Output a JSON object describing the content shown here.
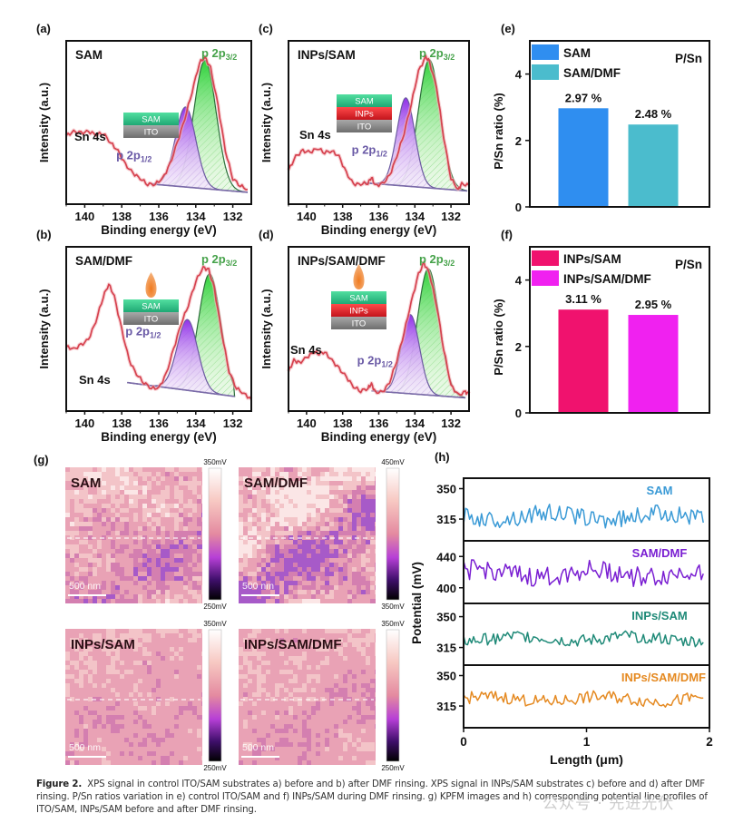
{
  "figure": {
    "caption_label": "Figure 2.",
    "caption_text": "XPS signal in control ITO/SAM substrates a) before and b) after DMF rinsing. XPS signal in INPs/SAM substrates c) before and d) after DMF rinsing. P/Sn ratios variation in e) control ITO/SAM and f) INPs/SAM during DMF rinsing. g) KPFM images and h) corresponding potential line profiles of ITO/SAM, INPs/SAM before and after DMF rinsing.",
    "watermark": "公众号 · 先进光伏"
  },
  "colors": {
    "raw_curve": "#d6424f",
    "p32_fill": "#3ecf47",
    "p12_fill": "#9a4ae0",
    "baseline": "#7a6aa8",
    "bar_sam": "#2f8ef0",
    "bar_sam_dmf": "#4bbccd",
    "bar_inps_sam": "#f0126e",
    "bar_inps_sam_dmf": "#f021f0",
    "line_sam": "#3a9ad6",
    "line_sam_dmf": "#7a1fd2",
    "line_inps_sam": "#1f8a78",
    "line_inps_sam_dmf": "#e58a22",
    "layer_sam": "#2fc38a",
    "layer_inps": "#e0242c",
    "layer_ito": "#8c8c8c",
    "droplet": "#ea6a1e"
  },
  "chart_data": [
    {
      "id": "a",
      "panel_label": "(a)",
      "type": "line",
      "title": "SAM",
      "xlabel": "Binding energy (eV)",
      "ylabel": "Intensity (a.u.)",
      "xlim": [
        141,
        131
      ],
      "xticks": [
        140,
        138,
        136,
        134,
        132
      ],
      "ylim": [
        0,
        1
      ],
      "annotations": {
        "sn4s": "Sn 4s",
        "p12": "p 2p",
        "p12_sub": "1/2",
        "p32": "p 2p",
        "p32_sub": "3/2"
      },
      "stack_layers": [
        "SAM",
        "ITO"
      ],
      "droplet": false,
      "raw": {
        "x": [
          141,
          140.6,
          140.2,
          139.8,
          139.4,
          139.0,
          138.6,
          138.2,
          137.8,
          137.4,
          137.0,
          136.6,
          136.2,
          135.8,
          135.4,
          135.0,
          134.6,
          134.2,
          133.8,
          133.5,
          133.2,
          132.8,
          132.4,
          132.0,
          131.6,
          131.2
        ],
        "y": [
          0.43,
          0.46,
          0.45,
          0.46,
          0.44,
          0.45,
          0.38,
          0.32,
          0.22,
          0.16,
          0.12,
          0.08,
          0.08,
          0.12,
          0.22,
          0.38,
          0.55,
          0.75,
          0.96,
          1.0,
          0.92,
          0.65,
          0.32,
          0.12,
          0.07,
          0.04
        ]
      },
      "baseline": [
        [
          136.4,
          0.08
        ],
        [
          131.2,
          0.02
        ]
      ],
      "peak_p12": {
        "center": 134.55,
        "height": 0.58,
        "width": 0.55
      },
      "peak_p32": {
        "center": 133.5,
        "height": 0.93,
        "width": 0.6
      }
    },
    {
      "id": "b",
      "panel_label": "(b)",
      "type": "line",
      "title": "SAM/DMF",
      "xlabel": "Binding energy (eV)",
      "ylabel": "Intensity (a.u.)",
      "xlim": [
        141,
        131
      ],
      "xticks": [
        140,
        138,
        136,
        134,
        132
      ],
      "ylim": [
        0,
        1
      ],
      "annotations": {
        "sn4s": "Sn 4s",
        "p12": "p 2p",
        "p12_sub": "1/2",
        "p32": "p 2p",
        "p32_sub": "3/2"
      },
      "stack_layers": [
        "SAM",
        "ITO"
      ],
      "droplet": true,
      "raw": {
        "x": [
          141,
          140.6,
          140.2,
          139.8,
          139.4,
          139.0,
          138.7,
          138.4,
          138.0,
          137.6,
          137.2,
          136.8,
          136.4,
          136.0,
          135.6,
          135.2,
          134.8,
          134.4,
          134.0,
          133.6,
          133.3,
          133.0,
          132.6,
          132.2,
          131.8,
          131.4,
          131.0
        ],
        "y": [
          0.4,
          0.38,
          0.41,
          0.45,
          0.58,
          0.76,
          0.85,
          0.76,
          0.52,
          0.3,
          0.2,
          0.14,
          0.1,
          0.1,
          0.2,
          0.38,
          0.56,
          0.7,
          0.87,
          0.97,
          0.95,
          0.82,
          0.5,
          0.22,
          0.1,
          0.06,
          0.02
        ]
      },
      "baseline": [
        [
          137.7,
          0.14
        ],
        [
          131.9,
          0.04
        ]
      ],
      "peak_p12": {
        "center": 134.45,
        "height": 0.51,
        "width": 0.55
      },
      "peak_p32": {
        "center": 133.25,
        "height": 0.86,
        "width": 0.6
      }
    },
    {
      "id": "c",
      "panel_label": "(c)",
      "type": "line",
      "title": "INPs/SAM",
      "xlabel": "Binding energy (eV)",
      "ylabel": "Intensity (a.u.)",
      "xlim": [
        141,
        131
      ],
      "xticks": [
        140,
        138,
        136,
        134,
        132
      ],
      "ylim": [
        0,
        1
      ],
      "annotations": {
        "sn4s": "Sn 4s",
        "p12": "p 2p",
        "p12_sub": "1/2",
        "p32": "p 2p",
        "p32_sub": "3/2"
      },
      "stack_layers": [
        "SAM",
        "INPs",
        "ITO"
      ],
      "droplet": false,
      "raw": {
        "x": [
          141,
          140.6,
          140.2,
          139.8,
          139.4,
          139.0,
          138.6,
          138.2,
          137.8,
          137.4,
          137.0,
          136.6,
          136.4,
          136.2,
          135.8,
          135.4,
          135.0,
          134.6,
          134.2,
          133.8,
          133.4,
          133.2,
          132.8,
          132.4,
          132.0,
          131.6,
          131.4,
          131.0
        ],
        "y": [
          0.18,
          0.28,
          0.32,
          0.31,
          0.34,
          0.31,
          0.32,
          0.28,
          0.16,
          0.08,
          0.08,
          0.09,
          0.13,
          0.07,
          0.08,
          0.14,
          0.28,
          0.45,
          0.66,
          0.9,
          1.0,
          0.97,
          0.78,
          0.42,
          0.12,
          0.04,
          0.08,
          0.07
        ]
      },
      "baseline": [
        [
          136.9,
          0.09
        ],
        [
          131.1,
          0.03
        ]
      ],
      "peak_p12": {
        "center": 134.5,
        "height": 0.64,
        "width": 0.5
      },
      "peak_p32": {
        "center": 133.2,
        "height": 0.93,
        "width": 0.6
      }
    },
    {
      "id": "d",
      "panel_label": "(d)",
      "type": "line",
      "title": "INPs/SAM/DMF",
      "xlabel": "Binding energy (eV)",
      "ylabel": "Intensity (a.u.)",
      "xlim": [
        141,
        131
      ],
      "xticks": [
        140,
        138,
        136,
        134,
        132
      ],
      "ylim": [
        0,
        1
      ],
      "annotations": {
        "sn4s": "Sn 4s",
        "p12": "p 2p",
        "p12_sub": "1/2",
        "p32": "p 2p",
        "p32_sub": "3/2"
      },
      "stack_layers": [
        "SAM",
        "INPs",
        "ITO"
      ],
      "droplet": true,
      "raw": {
        "x": [
          141,
          140.7,
          140.4,
          140.0,
          139.6,
          139.3,
          139.0,
          138.6,
          138.2,
          137.8,
          137.4,
          137.0,
          136.6,
          136.4,
          136.2,
          135.8,
          135.4,
          135.0,
          134.6,
          134.2,
          133.8,
          133.5,
          133.2,
          132.8,
          132.4,
          132.0,
          131.6,
          131.2,
          131.0
        ],
        "y": [
          0.22,
          0.3,
          0.28,
          0.32,
          0.36,
          0.35,
          0.36,
          0.3,
          0.24,
          0.18,
          0.11,
          0.08,
          0.1,
          0.13,
          0.07,
          0.07,
          0.14,
          0.3,
          0.5,
          0.72,
          0.92,
          1.0,
          0.93,
          0.7,
          0.38,
          0.12,
          0.05,
          0.07,
          0.06
        ]
      },
      "baseline": [
        [
          136.4,
          0.08
        ],
        [
          131.2,
          0.03
        ]
      ],
      "peak_p12": {
        "center": 134.25,
        "height": 0.57,
        "width": 0.5
      },
      "peak_p32": {
        "center": 133.25,
        "height": 0.91,
        "width": 0.6
      }
    },
    {
      "id": "e",
      "panel_label": "(e)",
      "type": "bar",
      "title": "P/Sn",
      "ylabel": "P/Sn ratio (%)",
      "xlabel": "",
      "ylim": [
        0,
        5
      ],
      "yticks": [
        0,
        2,
        4
      ],
      "categories": [
        "SAM",
        "SAM/DMF"
      ],
      "values": [
        2.97,
        2.48
      ],
      "value_labels": [
        "2.97 %",
        "2.48 %"
      ],
      "legend": [
        "SAM",
        "SAM/DMF"
      ],
      "legend_position": "top-left"
    },
    {
      "id": "f",
      "panel_label": "(f)",
      "type": "bar",
      "title": "P/Sn",
      "ylabel": "P/Sn ratio (%)",
      "xlabel": "",
      "ylim": [
        0,
        5
      ],
      "yticks": [
        0,
        2,
        4
      ],
      "categories": [
        "INPs/SAM",
        "INPs/SAM/DMF"
      ],
      "values": [
        3.11,
        2.95
      ],
      "value_labels": [
        "3.11 %",
        "2.95 %"
      ],
      "legend": [
        "INPs/SAM",
        "INPs/SAM/DMF"
      ],
      "legend_position": "top-left"
    },
    {
      "id": "g",
      "panel_label": "(g)",
      "type": "heatmap",
      "maps": [
        {
          "title": "SAM",
          "scale_bar": "500 nm",
          "cbar_max": "350mV",
          "cbar_min": "250mV",
          "variation": 0.55
        },
        {
          "title": "SAM/DMF",
          "scale_bar": "500 nm",
          "cbar_max": "450mV",
          "cbar_min": "350mV",
          "variation": 0.9
        },
        {
          "title": "INPs/SAM",
          "scale_bar": "500 nm",
          "cbar_max": "350mV",
          "cbar_min": "250mV",
          "variation": 0.2
        },
        {
          "title": "INPs/SAM/DMF",
          "scale_bar": "500 nm",
          "cbar_max": "350mV",
          "cbar_min": "250mV",
          "variation": 0.2
        }
      ]
    },
    {
      "id": "h",
      "panel_label": "(h)",
      "type": "line",
      "xlabel": "Length (μm)",
      "ylabel": "Potential (mV)",
      "xlim": [
        0,
        2
      ],
      "xticks": [
        0,
        1,
        2
      ],
      "series": [
        {
          "name": "SAM",
          "yticks": [
            350,
            315
          ],
          "ylim": [
            290,
            362
          ],
          "mean": 318,
          "amp": 10,
          "seed": 3
        },
        {
          "name": "SAM/DMF",
          "yticks": [
            440,
            400
          ],
          "ylim": [
            380,
            460
          ],
          "mean": 418,
          "amp": 13,
          "seed": 7
        },
        {
          "name": "INPs/SAM",
          "yticks": [
            350,
            315
          ],
          "ylim": [
            295,
            365
          ],
          "mean": 325,
          "amp": 7,
          "seed": 11
        },
        {
          "name": "INPs/SAM/DMF",
          "yticks": [
            350,
            315
          ],
          "ylim": [
            290,
            362
          ],
          "mean": 323,
          "amp": 7,
          "seed": 19
        }
      ]
    }
  ]
}
